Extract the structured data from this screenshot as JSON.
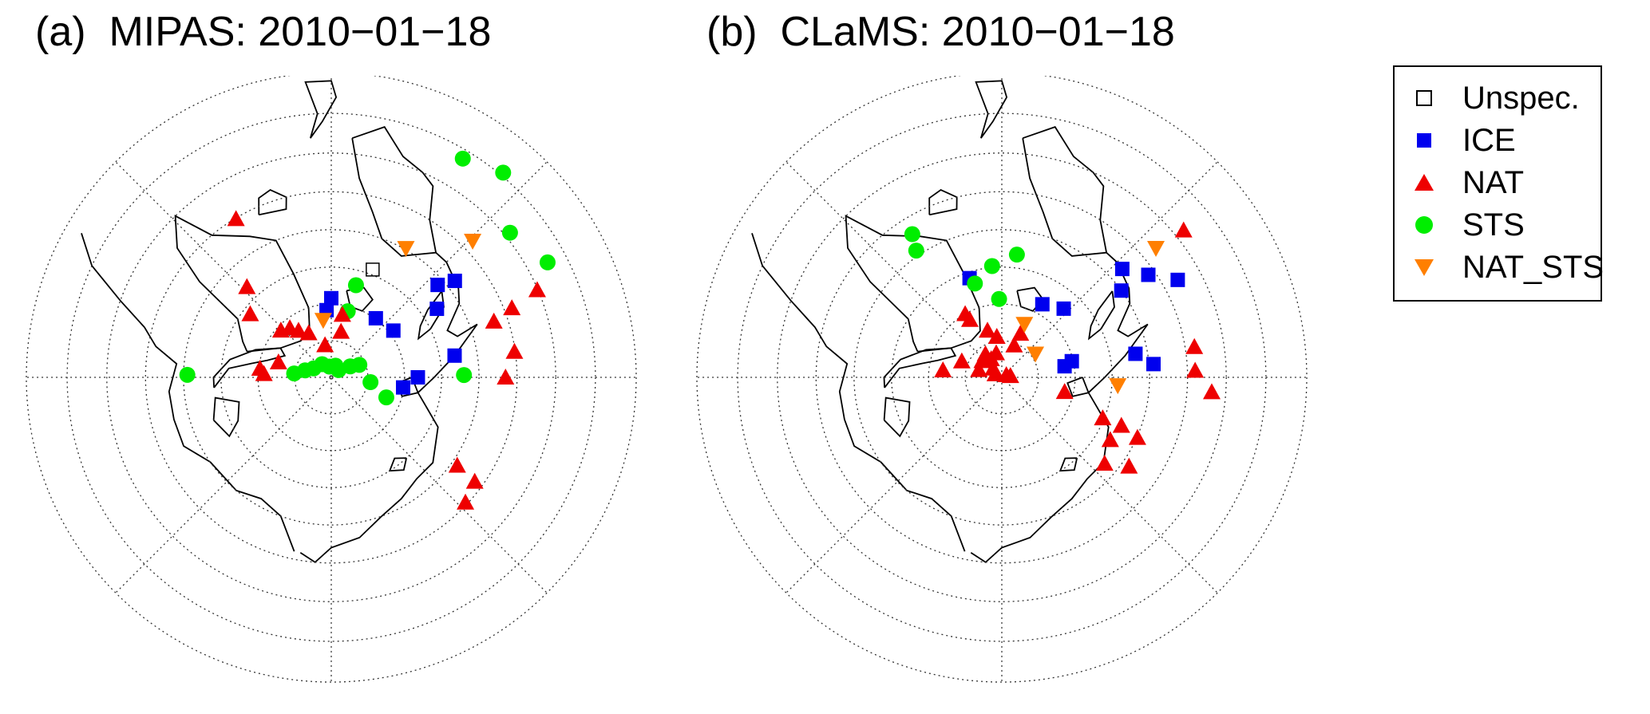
{
  "panels": [
    {
      "title": "(a)  MIPAS: 2010−01−18",
      "points": [
        {
          "type": "STS",
          "lon": -10,
          "lat": 88.5
        },
        {
          "type": "STS",
          "lon": 20,
          "lat": 88.3
        },
        {
          "type": "STS",
          "lon": -35,
          "lat": 87.8
        },
        {
          "type": "STS",
          "lon": 45,
          "lat": 88.6
        },
        {
          "type": "STS",
          "lon": 60,
          "lat": 87.0
        },
        {
          "type": "STS",
          "lon": 66,
          "lat": 85.8
        },
        {
          "type": "STS",
          "lon": -63,
          "lat": 87.3
        },
        {
          "type": "STS",
          "lon": -75,
          "lat": 86.3
        },
        {
          "type": "STS",
          "lon": -84,
          "lat": 84.9
        },
        {
          "type": "STS",
          "lon": 97,
          "lat": 84.6
        },
        {
          "type": "STS",
          "lon": 110,
          "lat": 82.0
        },
        {
          "type": "STS",
          "lon": 14,
          "lat": 80.7
        },
        {
          "type": "STS",
          "lon": 15,
          "lat": 77.0
        },
        {
          "type": "STS",
          "lon": -89,
          "lat": 70.5
        },
        {
          "type": "STS",
          "lon": 89,
          "lat": 72.0
        },
        {
          "type": "STS",
          "lon": 51,
          "lat": 59.3
        },
        {
          "type": "STS",
          "lon": 62,
          "lat": 57.4
        },
        {
          "type": "STS",
          "lon": 31,
          "lat": 56.1
        },
        {
          "type": "STS",
          "lon": 40,
          "lat": 54.6
        },
        {
          "type": "NAT",
          "lon": -11,
          "lat": 85.5
        },
        {
          "type": "NAT",
          "lon": 12,
          "lat": 83.6
        },
        {
          "type": "NAT",
          "lon": 10,
          "lat": 81.3
        },
        {
          "type": "NAT",
          "lon": -27,
          "lat": 83.2
        },
        {
          "type": "NAT",
          "lon": -35,
          "lat": 82.2
        },
        {
          "type": "NAT",
          "lon": -40,
          "lat": 81.2
        },
        {
          "type": "NAT",
          "lon": -47,
          "lat": 80.6
        },
        {
          "type": "NAT",
          "lon": -74,
          "lat": 82.5
        },
        {
          "type": "NAT",
          "lon": -83,
          "lat": 80.2
        },
        {
          "type": "NAT",
          "lon": -87,
          "lat": 80.8
        },
        {
          "type": "NAT",
          "lon": -52,
          "lat": 76.0
        },
        {
          "type": "NAT",
          "lon": -43,
          "lat": 73.2
        },
        {
          "type": "NAT",
          "lon": -31,
          "lat": 65.1
        },
        {
          "type": "NAT",
          "lon": 125,
          "lat": 69.2
        },
        {
          "type": "NAT",
          "lon": 126,
          "lat": 66.1
        },
        {
          "type": "NAT",
          "lon": 133,
          "lat": 65.3
        },
        {
          "type": "NAT",
          "lon": 90,
          "lat": 66.5
        },
        {
          "type": "NAT",
          "lon": 82,
          "lat": 65.1
        },
        {
          "type": "NAT",
          "lon": 71,
          "lat": 66.8
        },
        {
          "type": "NAT",
          "lon": 69,
          "lat": 64.0
        },
        {
          "type": "NAT",
          "lon": 67,
          "lat": 60.1
        },
        {
          "type": "ICE",
          "lon": 98,
          "lat": 80.1
        },
        {
          "type": "ICE",
          "lon": 90,
          "lat": 78.2
        },
        {
          "type": "ICE",
          "lon": 37,
          "lat": 79.9
        },
        {
          "type": "ICE",
          "lon": 53,
          "lat": 79.4
        },
        {
          "type": "ICE",
          "lon": -4,
          "lat": 80.8
        },
        {
          "type": "ICE",
          "lon": 0,
          "lat": 79.2
        },
        {
          "type": "ICE",
          "lon": 80,
          "lat": 73.0
        },
        {
          "type": "ICE",
          "lon": 57,
          "lat": 72.9
        },
        {
          "type": "ICE",
          "lon": 49,
          "lat": 70.9
        },
        {
          "type": "ICE",
          "lon": 52,
          "lat": 68.8
        },
        {
          "type": "NAT_STS",
          "lon": -8,
          "lat": 82.1
        },
        {
          "type": "NAT_STS",
          "lon": 30,
          "lat": 69.8
        },
        {
          "type": "NAT_STS",
          "lon": 46,
          "lat": 63.6
        },
        {
          "type": "Unspec.",
          "lon": 21,
          "lat": 74.3
        }
      ]
    },
    {
      "title": "(b)  CLaMS: 2010−01−18",
      "points": [
        {
          "type": "NAT",
          "lon": -83,
          "lat": 81.9
        },
        {
          "type": "NAT",
          "lon": -68,
          "lat": 84.1
        },
        {
          "type": "NAT",
          "lon": -50,
          "lat": 86.5
        },
        {
          "type": "NAT",
          "lon": -72,
          "lat": 86.7
        },
        {
          "type": "NAT",
          "lon": -44,
          "lat": 88.3
        },
        {
          "type": "NAT",
          "lon": -63,
          "lat": 89.0
        },
        {
          "type": "NAT",
          "lon": -13,
          "lat": 86.6
        },
        {
          "type": "NAT",
          "lon": 62,
          "lat": 89.3
        },
        {
          "type": "NAT",
          "lon": 80,
          "lat": 88.8
        },
        {
          "type": "NAT",
          "lon": -30,
          "lat": 87.1
        },
        {
          "type": "NAT",
          "lon": -35,
          "lat": 86.1
        },
        {
          "type": "NAT",
          "lon": -7,
          "lat": 84.4
        },
        {
          "type": "NAT",
          "lon": 21,
          "lat": 85.3
        },
        {
          "type": "NAT",
          "lon": 23,
          "lat": 83.5
        },
        {
          "type": "NAT",
          "lon": -17,
          "lat": 83.3
        },
        {
          "type": "NAT",
          "lon": -29,
          "lat": 81.0
        },
        {
          "type": "NAT",
          "lon": -30,
          "lat": 80.0
        },
        {
          "type": "NAT",
          "lon": 103,
          "lat": 81.2
        },
        {
          "type": "NAT",
          "lon": 112,
          "lat": 75.2
        },
        {
          "type": "NAT",
          "lon": 112,
          "lat": 72.5
        },
        {
          "type": "NAT",
          "lon": 114,
          "lat": 69.9
        },
        {
          "type": "NAT",
          "lon": 120,
          "lat": 73.0
        },
        {
          "type": "NAT",
          "lon": 125,
          "lat": 69.0
        },
        {
          "type": "NAT",
          "lon": 130,
          "lat": 71.8
        },
        {
          "type": "NAT",
          "lon": 81,
          "lat": 63.8
        },
        {
          "type": "NAT",
          "lon": 88,
          "lat": 64.0
        },
        {
          "type": "NAT",
          "lon": 94,
          "lat": 61.8
        },
        {
          "type": "NAT",
          "lon": 51,
          "lat": 58.8
        },
        {
          "type": "ICE",
          "lon": 80,
          "lat": 81.3
        },
        {
          "type": "ICE",
          "lon": 77,
          "lat": 80.2
        },
        {
          "type": "ICE",
          "lon": 80,
          "lat": 71.6
        },
        {
          "type": "ICE",
          "lon": 85,
          "lat": 69.4
        },
        {
          "type": "ICE",
          "lon": 29,
          "lat": 78.6
        },
        {
          "type": "ICE",
          "lon": 42,
          "lat": 77.4
        },
        {
          "type": "ICE",
          "lon": -18,
          "lat": 75.8
        },
        {
          "type": "ICE",
          "lon": 54,
          "lat": 70.0
        },
        {
          "type": "ICE",
          "lon": 48,
          "lat": 68.1
        },
        {
          "type": "ICE",
          "lon": 55,
          "lat": 65.9
        },
        {
          "type": "ICE",
          "lon": 61,
          "lat": 63.0
        },
        {
          "type": "STS",
          "lon": -2,
          "lat": 79.3
        },
        {
          "type": "STS",
          "lon": -16,
          "lat": 76.7
        },
        {
          "type": "STS",
          "lon": -5,
          "lat": 74.8
        },
        {
          "type": "STS",
          "lon": 7,
          "lat": 73.2
        },
        {
          "type": "STS",
          "lon": -34,
          "lat": 69.3
        },
        {
          "type": "STS",
          "lon": -32,
          "lat": 67.2
        },
        {
          "type": "NAT_STS",
          "lon": 23,
          "lat": 82.1
        },
        {
          "type": "NAT_STS",
          "lon": 55,
          "lat": 84.4
        },
        {
          "type": "NAT_STS",
          "lon": 94,
          "lat": 74.2
        },
        {
          "type": "NAT_STS",
          "lon": 50,
          "lat": 63.0
        }
      ]
    }
  ],
  "legend": [
    {
      "label": "Unspec.",
      "color": "#000000",
      "marker": "square-open"
    },
    {
      "label": "ICE",
      "color": "#0000ee",
      "marker": "square"
    },
    {
      "label": "NAT",
      "color": "#ee0000",
      "marker": "triangle-up"
    },
    {
      "label": "STS",
      "color": "#00ee00",
      "marker": "circle"
    },
    {
      "label": "NAT_STS",
      "color": "#ff7f00",
      "marker": "triangle-down"
    }
  ],
  "grid": {
    "latitude_circles_deg": [
      85,
      80,
      75,
      70,
      65,
      60,
      55,
      50
    ],
    "meridians_deg": [
      0,
      45,
      90,
      135,
      180,
      225,
      270,
      315
    ],
    "style": "dotted"
  }
}
